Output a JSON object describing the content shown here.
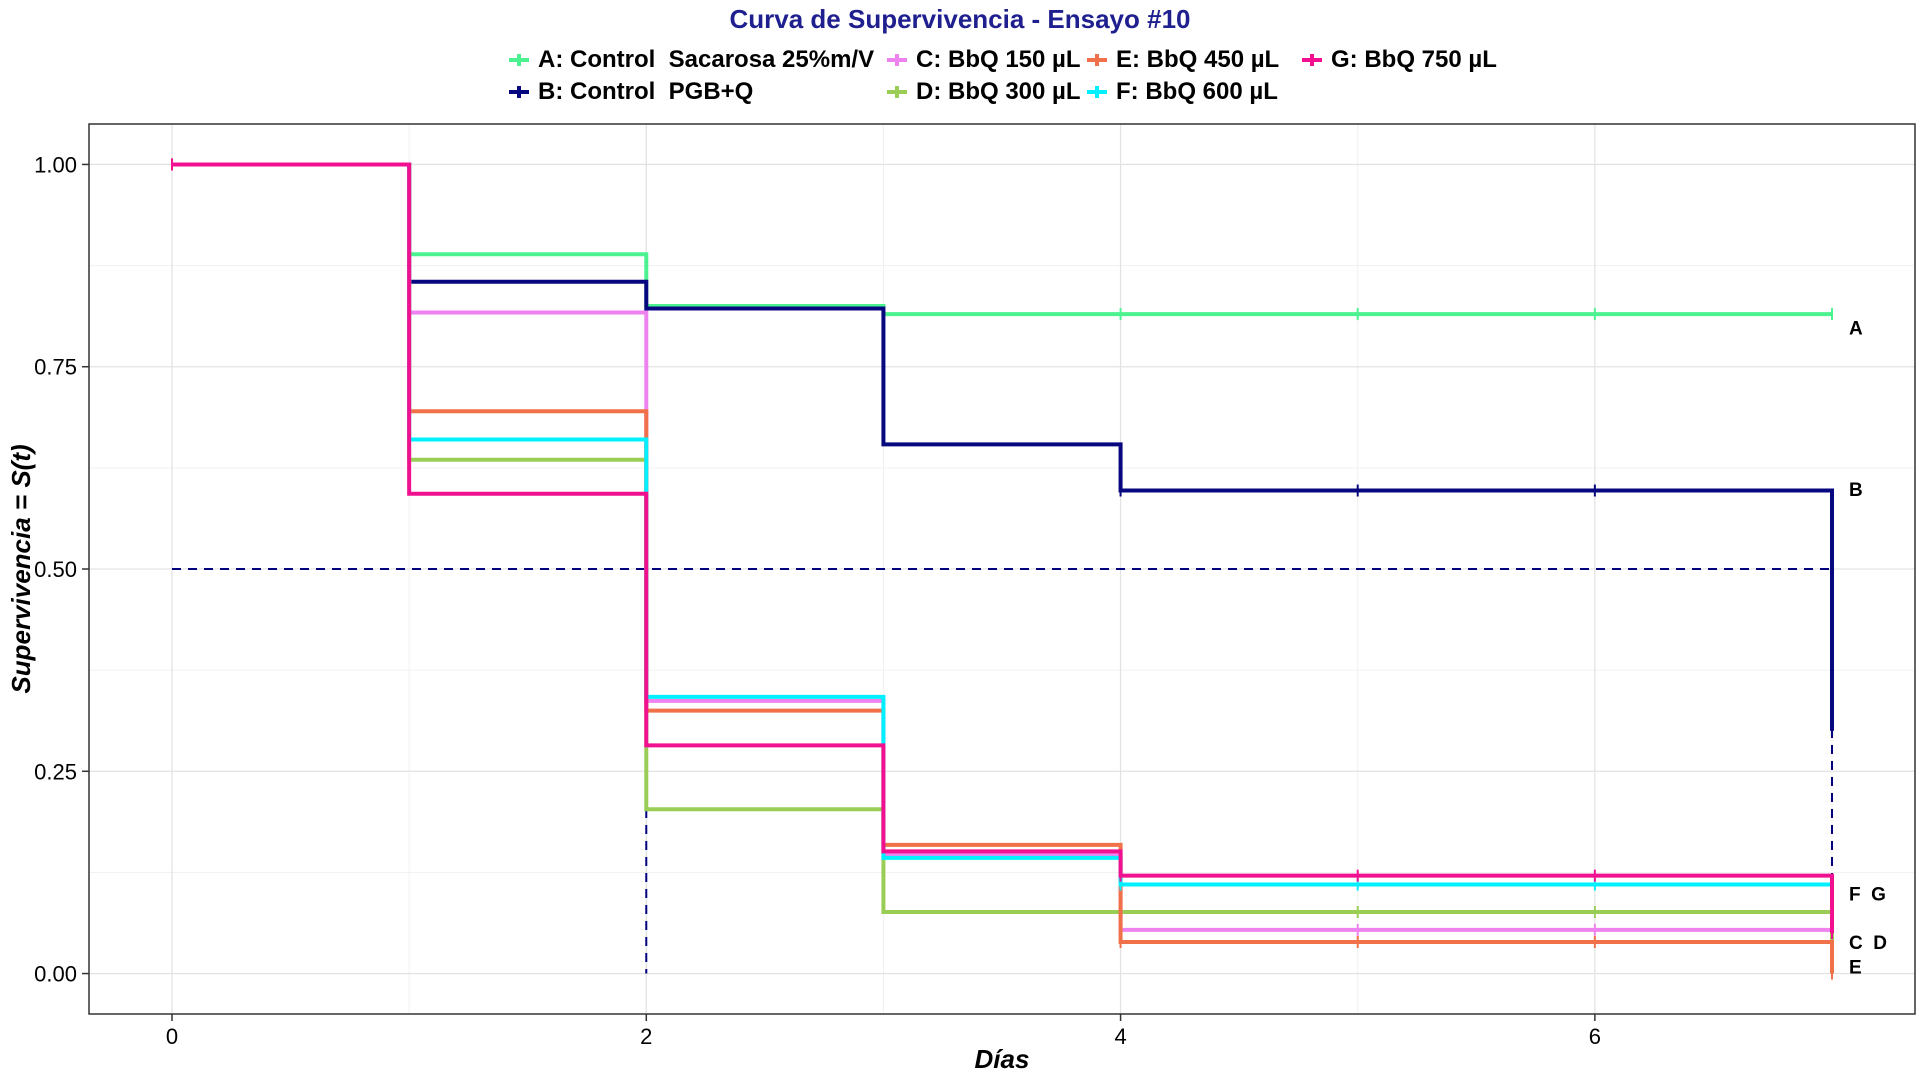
{
  "chart_data": {
    "type": "line",
    "subtype": "step (Kaplan-Meier survival curves)",
    "title": "Curva de Supervivencia - Ensayo #10",
    "xlabel": "Días",
    "ylabel": "Supervivencia = S(t)",
    "xlim": [
      -0.35,
      7.35
    ],
    "ylim": [
      -0.05,
      1.05
    ],
    "x_ticks": [
      0,
      2,
      4,
      6
    ],
    "x_tick_labels": [
      "0",
      "2",
      "4",
      "6"
    ],
    "y_ticks": [
      0,
      0.25,
      0.5,
      0.75,
      1.0
    ],
    "y_tick_labels": [
      "0.00",
      "0.25",
      "0.50",
      "0.75",
      "1.00"
    ],
    "grid": true,
    "legend_position": "top",
    "median_reference": {
      "y": 0.5,
      "x_end": 7,
      "vertical_lines_at_x": [
        2,
        7
      ],
      "style": "dashed",
      "color": "#00007f"
    },
    "series": [
      {
        "name": "A: Control  Sacarosa 25%m/V",
        "label": "A",
        "color": "#4cf28f",
        "times": [
          0,
          1,
          2,
          3,
          4,
          5,
          6,
          7
        ],
        "survival": [
          1.0,
          0.889,
          0.825,
          0.815,
          0.815,
          0.815,
          0.815,
          0.815
        ]
      },
      {
        "name": "B: Control  PGB+Q",
        "label": "B",
        "color": "#07077f",
        "times": [
          0,
          1,
          2,
          3,
          4,
          5,
          6,
          7
        ],
        "survival": [
          1.0,
          0.855,
          0.822,
          0.654,
          0.597,
          0.597,
          0.597,
          0.3
        ]
      },
      {
        "name": "C: BbQ 150 µL",
        "label": "C",
        "color": "#ee82ee",
        "times": [
          0,
          1,
          2,
          3,
          4,
          5,
          6,
          7
        ],
        "survival": [
          1.0,
          0.817,
          0.337,
          0.147,
          0.054,
          0.054,
          0.054,
          0.054
        ]
      },
      {
        "name": "D: BbQ 300 µL",
        "label": "D",
        "color": "#9acd55",
        "times": [
          0,
          1,
          2,
          3,
          4,
          5,
          6,
          7
        ],
        "survival": [
          1.0,
          0.635,
          0.203,
          0.076,
          0.076,
          0.076,
          0.076,
          0.04
        ]
      },
      {
        "name": "E: BbQ 450 µL",
        "label": "E",
        "color": "#f0704a",
        "times": [
          0,
          1,
          2,
          3,
          4,
          5,
          6,
          7
        ],
        "survival": [
          1.0,
          0.695,
          0.325,
          0.159,
          0.039,
          0.039,
          0.039,
          0.0
        ]
      },
      {
        "name": "F: BbQ 600 µL",
        "label": "F",
        "color": "#00f0ff",
        "times": [
          0,
          1,
          2,
          3,
          4,
          5,
          6,
          7
        ],
        "survival": [
          1.0,
          0.66,
          0.342,
          0.143,
          0.11,
          0.11,
          0.11,
          0.11
        ]
      },
      {
        "name": "G: BbQ 750 µL",
        "label": "G",
        "color": "#f01090",
        "times": [
          0,
          1,
          2,
          3,
          4,
          5,
          6,
          7
        ],
        "survival": [
          1.0,
          0.593,
          0.282,
          0.151,
          0.121,
          0.121,
          0.121,
          0.05
        ]
      }
    ],
    "end_labels": [
      {
        "text": "A",
        "y": 0.8
      },
      {
        "text": "B",
        "y": 0.6
      },
      {
        "text": "F  G",
        "y": 0.1
      },
      {
        "text": "C  D",
        "y": 0.04
      },
      {
        "text": "E",
        "y": 0.01
      }
    ]
  }
}
